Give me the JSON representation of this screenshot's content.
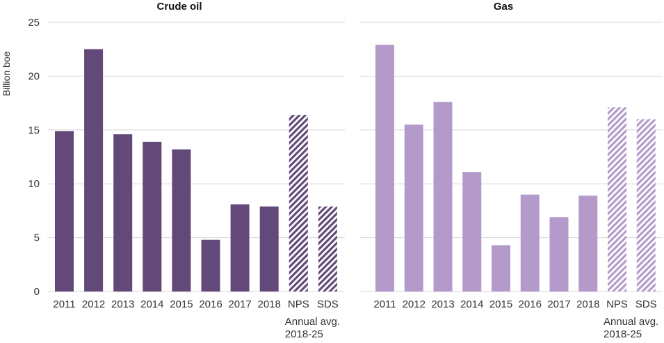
{
  "chart_data": [
    {
      "type": "bar",
      "title": "Crude oil",
      "ylabel": "Billion boe",
      "xlabel": "",
      "ylim": [
        0,
        25
      ],
      "yticks": [
        0,
        5,
        10,
        15,
        20,
        25
      ],
      "grid": true,
      "categories": [
        "2011",
        "2012",
        "2013",
        "2014",
        "2015",
        "2016",
        "2017",
        "2018",
        "NPS",
        "SDS"
      ],
      "values": [
        14.9,
        22.5,
        14.6,
        13.9,
        13.2,
        4.8,
        8.1,
        7.9,
        16.4,
        7.9
      ],
      "hatched": [
        "NPS",
        "SDS"
      ],
      "color": "#634979",
      "group_label": "Annual avg. 2018-25"
    },
    {
      "type": "bar",
      "title": "Gas",
      "ylabel": "",
      "xlabel": "",
      "ylim": [
        0,
        25
      ],
      "yticks": [
        0,
        5,
        10,
        15,
        20,
        25
      ],
      "grid": true,
      "categories": [
        "2011",
        "2012",
        "2013",
        "2014",
        "2015",
        "2016",
        "2017",
        "2018",
        "NPS",
        "SDS"
      ],
      "values": [
        22.9,
        15.5,
        17.6,
        11.1,
        4.3,
        9.0,
        6.9,
        8.9,
        17.1,
        16.0
      ],
      "hatched": [
        "NPS",
        "SDS"
      ],
      "color": "#b49acb",
      "group_label": "Annual avg. 2018-25"
    }
  ],
  "colors": {
    "grid": "#d4d4d4",
    "axis_text": "#333333",
    "hatch_gap": "#ffffff"
  }
}
